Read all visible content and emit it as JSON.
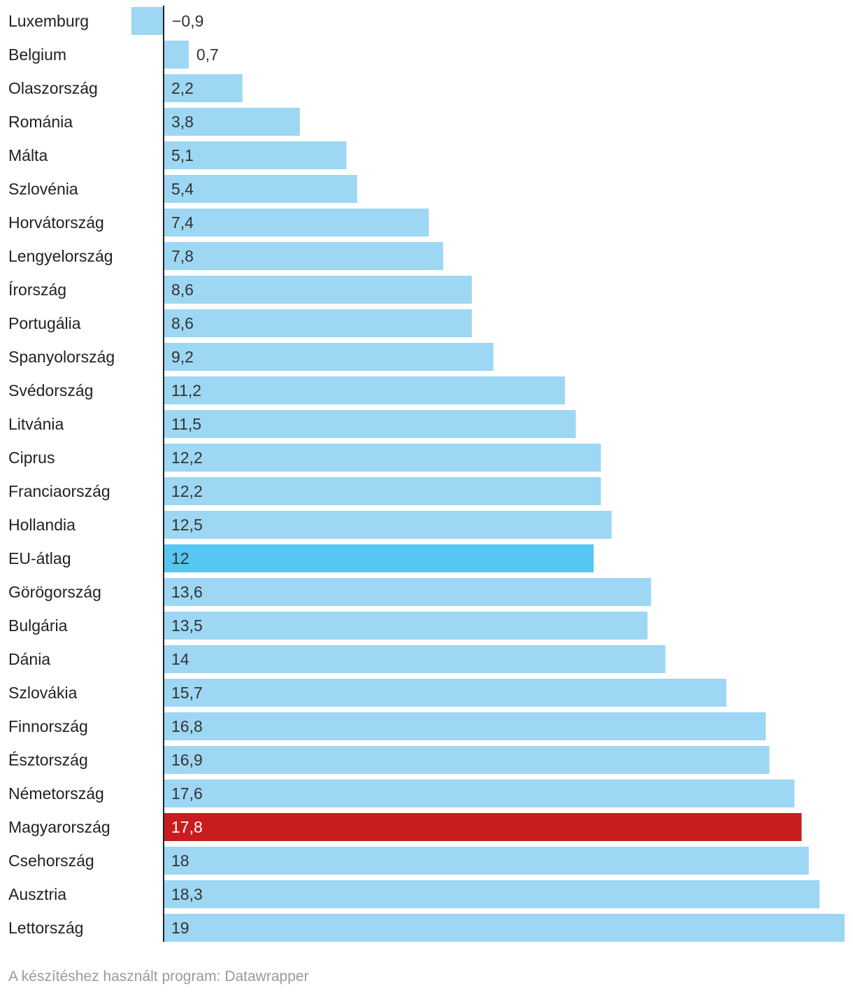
{
  "chart_data": {
    "type": "bar",
    "orientation": "horizontal",
    "categories": [
      "Luxemburg",
      "Belgium",
      "Olaszország",
      "Románia",
      "Málta",
      "Szlovénia",
      "Horvátország",
      "Lengyelország",
      "Írország",
      "Portugália",
      "Spanyolország",
      "Svédország",
      "Litvánia",
      "Ciprus",
      "Franciaország",
      "Hollandia",
      "EU-átlag",
      "Görögország",
      "Bulgária",
      "Dánia",
      "Szlovákia",
      "Finnország",
      "Észtország",
      "Németország",
      "Magyarország",
      "Csehország",
      "Ausztria",
      "Lettország"
    ],
    "values": [
      -0.9,
      0.7,
      2.2,
      3.8,
      5.1,
      5.4,
      7.4,
      7.8,
      8.6,
      8.6,
      9.2,
      11.2,
      11.5,
      12.2,
      12.2,
      12.5,
      12,
      13.6,
      13.5,
      14,
      15.7,
      16.8,
      16.9,
      17.6,
      17.8,
      18,
      18.3,
      19
    ],
    "value_labels": [
      "−0,9",
      "0,7",
      "2,2",
      "3,8",
      "5,1",
      "5,4",
      "7,4",
      "7,8",
      "8,6",
      "8,6",
      "9,2",
      "11,2",
      "11,5",
      "12,2",
      "12,2",
      "12,5",
      "12",
      "13,6",
      "13,5",
      "14",
      "15,7",
      "16,8",
      "16,9",
      "17,6",
      "17,8",
      "18",
      "18,3",
      "19"
    ],
    "xlim": [
      -0.9,
      19
    ],
    "grid": false,
    "colors": {
      "default": "#9dd7f3",
      "highlight_eu": "#58c6f2",
      "highlight_hu": "#c91c1f",
      "baseline": "#222222"
    },
    "highlights": {
      "EU-átlag": "highlight_eu",
      "Magyarország": "highlight_hu"
    }
  },
  "footer": {
    "credit": "A készítéshez használt program: Datawrapper"
  }
}
